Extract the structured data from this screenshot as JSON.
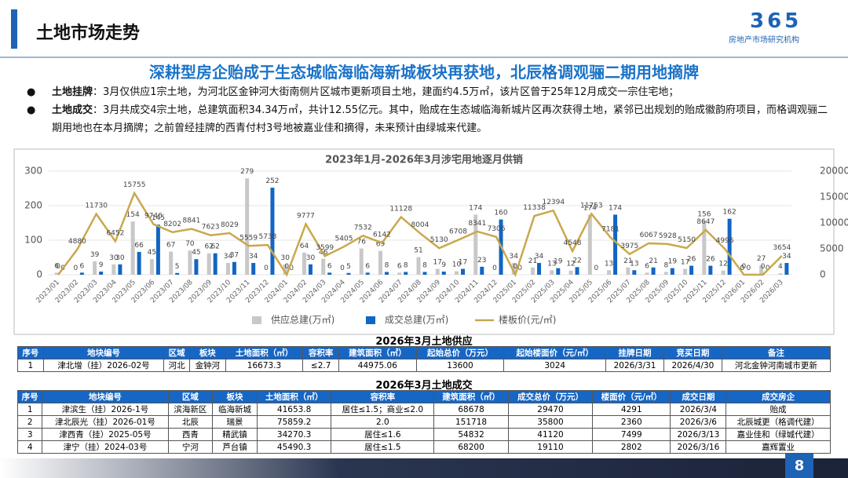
{
  "header": {
    "title": "土地市场走势",
    "logo_number": "365",
    "logo_text": "房地产市场研究机构"
  },
  "subtitle": "深耕型房企贻成于生态城临海临海新城板块再获地，北辰格调观骊二期用地摘牌",
  "bullets": [
    {
      "label": "土地挂牌",
      "text": "：3月仅供应1宗土地，为河北区金钟河大街南侧片区城市更新项目土地，建面约4.5万㎡，该片区曾于25年12月成交一宗住宅地；"
    },
    {
      "label": "土地成交",
      "text": "：3月共成交4宗土地，总建筑面积34.34万㎡，共计12.55亿元。其中，贻成在生态城临海新城片区再次获得土地，紧邻已出规划的贻成徽韵府项目，而格调观骊二期用地也在本月摘牌；之前曾经挂牌的西青付村3号地被嘉业佳和摘得，未来预计由绿城来代建。"
    }
  ],
  "chart_data": {
    "type": "bar",
    "title": "2023年1月-2026年3月涉宅用地逐月供销",
    "categories": [
      "2023/01",
      "2023/02",
      "2023/03",
      "2023/04",
      "2023/05",
      "2023/06",
      "2023/07",
      "2023/08",
      "2023/09",
      "2023/10",
      "2023/11",
      "2023/12",
      "2024/01",
      "2024/02",
      "2024/03",
      "2024/04",
      "2024/05",
      "2024/06",
      "2024/07",
      "2024/08",
      "2024/09",
      "2024/10",
      "2024/11",
      "2024/12",
      "2025/01",
      "2025/02",
      "2025/03",
      "2025/04",
      "2025/05",
      "2025/06",
      "2025/07",
      "2025/08",
      "2025/09",
      "2025/10",
      "2025/11",
      "2025/12",
      "2026/01",
      "2026/02",
      "2026/03"
    ],
    "series": [
      {
        "name": "供应总建(万㎡)",
        "type": "bar",
        "color": "#c8c8c8",
        "values": [
          6,
          0,
          39,
          30,
          154,
          45,
          67,
          70,
          62,
          34,
          279,
          0,
          30,
          64,
          46,
          0,
          76,
          69,
          6,
          51,
          17,
          10,
          174,
          0,
          34,
          21,
          13,
          12,
          174,
          13,
          21,
          6,
          8,
          17,
          156,
          12,
          0,
          27,
          4
        ]
      },
      {
        "name": "成交总建(万㎡)",
        "type": "bar",
        "color": "#1166c4",
        "values": [
          0,
          6,
          9,
          30,
          66,
          145,
          5,
          45,
          62,
          37,
          34,
          252,
          0,
          30,
          6,
          5,
          6,
          8,
          8,
          8,
          9,
          17,
          23,
          160,
          0,
          34,
          19,
          22,
          0,
          174,
          13,
          21,
          19,
          26,
          26,
          162,
          0,
          0,
          34
        ]
      },
      {
        "name": "楼板价(元/㎡)",
        "type": "line",
        "axis": "y2",
        "color": "#c9a84c",
        "values": [
          0,
          4880,
          11730,
          6452,
          15755,
          9746,
          8202,
          8841,
          7623,
          8029,
          5559,
          5738,
          0,
          9777,
          3599,
          5405,
          7532,
          6142,
          11128,
          8004,
          5130,
          6708,
          8341,
          7306,
          0,
          11338,
          12394,
          4548,
          11753,
          7181,
          3975,
          6067,
          5928,
          5150,
          8647,
          4996,
          0,
          0,
          3654
        ]
      }
    ],
    "ylim": [
      0,
      300
    ],
    "yticks": [
      0,
      100,
      200,
      300
    ],
    "y2lim": [
      0,
      20000
    ],
    "y2ticks": [
      0,
      5000,
      10000,
      15000,
      20000
    ],
    "grid": true,
    "legend": "bottom"
  },
  "supply_table": {
    "title": "2026年3月土地供应",
    "columns": [
      "序号",
      "地块编号",
      "区域",
      "板块",
      "土地面积（㎡）",
      "容积率",
      "建筑面积（㎡）",
      "起始总价（万元）",
      "起始楼面价（元/㎡）",
      "挂牌日期",
      "竞买日期",
      "备注"
    ],
    "rows": [
      [
        "1",
        "津北增（挂）2026-02号",
        "河北",
        "金钟河",
        "16673.3",
        "≤2.7",
        "44975.06",
        "13600",
        "3024",
        "2026/3/31",
        "2026/4/30",
        "河北金钟河南城市更新"
      ]
    ]
  },
  "deal_table": {
    "title": "2026年3月土地成交",
    "columns": [
      "序号",
      "地块编号",
      "区域",
      "板块",
      "土地面积（㎡）",
      "容积率",
      "建筑面积（㎡）",
      "成交总价（万元）",
      "楼面价（元/㎡）",
      "成交日期",
      "成交房企"
    ],
    "rows": [
      [
        "1",
        "津滨生（挂）2026-1号",
        "滨海新区",
        "临海新城",
        "41653.8",
        "居住≤1.5；商业≤2.0",
        "68678",
        "29470",
        "4291",
        "2026/3/4",
        "贻成"
      ],
      [
        "2",
        "津北辰光（挂）2026-01号",
        "北辰",
        "瑞景",
        "75859.2",
        "2.0",
        "151718",
        "35800",
        "2360",
        "2026/3/6",
        "北辰城更（格调代建）"
      ],
      [
        "3",
        "津西青（挂）2025-05号",
        "西青",
        "精武镇",
        "34270.3",
        "居住≤1.6",
        "54832",
        "41120",
        "7499",
        "2026/3/13",
        "嘉业佳和（绿城代建）"
      ],
      [
        "4",
        "津宁（挂）2024-03号",
        "宁河",
        "芦台镇",
        "45490.3",
        "居住≤1.5",
        "68200",
        "19110",
        "2802",
        "2026/3/16",
        "嘉辉置业"
      ]
    ]
  },
  "page_number": "8"
}
